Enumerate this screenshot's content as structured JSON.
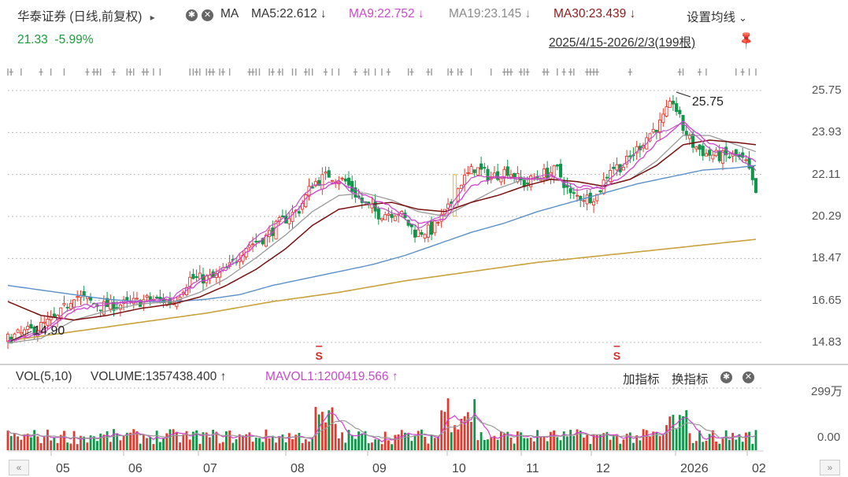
{
  "header": {
    "title": "华泰证券 (日线,前复权)",
    "arrow": "▸",
    "ma_label": "MA",
    "ma5": "MA5:22.612",
    "ma9": "MA9:22.752",
    "ma19": "MA19:23.145",
    "ma30": "MA30:23.439",
    "down_arrow": "↓",
    "settings": "设置均线",
    "settings_chevron": "⌄",
    "price": "21.33",
    "change": "-5.99%",
    "range": "2025/4/15-2026/2/3(199根)"
  },
  "volume_header": {
    "vol": "VOL(5,10)",
    "volume": "VOLUME:1357438.400",
    "volume_arrow": "↑",
    "mavol": "MAVOL1:1200419.566",
    "mavol_arrow": "↑",
    "add_indicator": "加指标",
    "switch_indicator": "换指标"
  },
  "colors": {
    "up": "#e23a2e",
    "down": "#10964a",
    "ma5": "#c24ec2",
    "ma9": "#d23fd2",
    "ma19": "#999999",
    "ma30": "#7a1010",
    "ma_long1": "#5a8fc8",
    "ma_long2": "#c8a23a",
    "header_green": "#1a9a3a",
    "ma30_text": "#8b1a1a"
  },
  "chart_data": {
    "type": "candlestick",
    "y_ticks": [
      "25.75",
      "23.93",
      "22.11",
      "20.29",
      "18.47",
      "16.65",
      "14.83"
    ],
    "ylim": [
      14.83,
      25.75
    ],
    "x_labels": [
      "05",
      "06",
      "07",
      "08",
      "09",
      "10",
      "11",
      "12",
      "2026",
      "02"
    ],
    "annotations": {
      "high": "25.75",
      "low": "14.90",
      "markers": [
        "S",
        "S"
      ]
    },
    "volume_ticks": [
      "299万",
      "0.00"
    ],
    "price_path": [
      [
        0,
        15.0
      ],
      [
        8,
        15.4
      ],
      [
        15,
        15.9
      ],
      [
        20,
        16.9
      ],
      [
        28,
        16.4
      ],
      [
        36,
        16.5
      ],
      [
        43,
        16.7
      ],
      [
        50,
        16.6
      ],
      [
        55,
        17.6
      ],
      [
        62,
        17.6
      ],
      [
        67,
        18.1
      ],
      [
        72,
        19.0
      ],
      [
        78,
        19.4
      ],
      [
        82,
        20.0
      ],
      [
        88,
        20.6
      ],
      [
        92,
        21.7
      ],
      [
        97,
        22.1
      ],
      [
        102,
        21.8
      ],
      [
        107,
        20.9
      ],
      [
        112,
        20.4
      ],
      [
        118,
        20.5
      ],
      [
        123,
        19.6
      ],
      [
        128,
        19.7
      ],
      [
        133,
        20.6
      ],
      [
        137,
        21.8
      ],
      [
        141,
        22.4
      ],
      [
        146,
        22.0
      ],
      [
        151,
        22.3
      ],
      [
        156,
        21.7
      ],
      [
        161,
        22.1
      ],
      [
        166,
        22.3
      ],
      [
        170,
        21.2
      ],
      [
        175,
        21.1
      ],
      [
        178,
        21.2
      ],
      [
        182,
        22.4
      ],
      [
        186,
        22.5
      ],
      [
        190,
        23.2
      ],
      [
        194,
        23.9
      ],
      [
        197,
        24.3
      ],
      [
        201,
        25.3
      ],
      [
        204,
        24.1
      ],
      [
        207,
        23.4
      ],
      [
        211,
        23.0
      ],
      [
        215,
        22.9
      ],
      [
        220,
        22.9
      ],
      [
        223,
        22.6
      ],
      [
        226,
        21.33
      ]
    ],
    "ma_anchors": {
      "ma5": [
        [
          0,
          14.9
        ],
        [
          10,
          15.3
        ],
        [
          20,
          16.4
        ],
        [
          30,
          16.5
        ],
        [
          40,
          16.6
        ],
        [
          50,
          16.8
        ],
        [
          58,
          17.6
        ],
        [
          66,
          18.1
        ],
        [
          75,
          19.4
        ],
        [
          84,
          20.3
        ],
        [
          92,
          21.6
        ],
        [
          100,
          21.8
        ],
        [
          108,
          20.9
        ],
        [
          116,
          20.5
        ],
        [
          124,
          19.8
        ],
        [
          132,
          20.4
        ],
        [
          140,
          22.0
        ],
        [
          148,
          22.0
        ],
        [
          156,
          21.9
        ],
        [
          164,
          22.1
        ],
        [
          172,
          21.4
        ],
        [
          180,
          21.6
        ],
        [
          188,
          22.8
        ],
        [
          196,
          23.9
        ],
        [
          204,
          24.3
        ],
        [
          212,
          23.2
        ],
        [
          220,
          22.9
        ],
        [
          226,
          22.3
        ]
      ],
      "ma9": [
        [
          0,
          14.9
        ],
        [
          10,
          15.2
        ],
        [
          20,
          16.2
        ],
        [
          30,
          16.5
        ],
        [
          40,
          16.6
        ],
        [
          50,
          16.7
        ],
        [
          58,
          17.4
        ],
        [
          66,
          18.0
        ],
        [
          75,
          19.1
        ],
        [
          84,
          20.1
        ],
        [
          92,
          21.3
        ],
        [
          100,
          21.8
        ],
        [
          108,
          21.2
        ],
        [
          116,
          20.7
        ],
        [
          124,
          20.0
        ],
        [
          132,
          20.2
        ],
        [
          140,
          21.6
        ],
        [
          148,
          22.0
        ],
        [
          156,
          21.9
        ],
        [
          164,
          22.0
        ],
        [
          172,
          21.6
        ],
        [
          180,
          21.5
        ],
        [
          188,
          22.3
        ],
        [
          196,
          23.5
        ],
        [
          204,
          24.4
        ],
        [
          212,
          23.5
        ],
        [
          220,
          23.0
        ],
        [
          226,
          22.7
        ]
      ],
      "ma19": [
        [
          0,
          14.8
        ],
        [
          10,
          15.0
        ],
        [
          20,
          15.8
        ],
        [
          30,
          16.2
        ],
        [
          40,
          16.5
        ],
        [
          50,
          16.6
        ],
        [
          58,
          17.0
        ],
        [
          66,
          17.6
        ],
        [
          75,
          18.5
        ],
        [
          84,
          19.5
        ],
        [
          92,
          20.5
        ],
        [
          100,
          21.2
        ],
        [
          108,
          21.3
        ],
        [
          116,
          21.0
        ],
        [
          124,
          20.5
        ],
        [
          132,
          20.3
        ],
        [
          140,
          20.9
        ],
        [
          148,
          21.5
        ],
        [
          156,
          21.9
        ],
        [
          164,
          21.9
        ],
        [
          172,
          21.8
        ],
        [
          180,
          21.6
        ],
        [
          188,
          21.9
        ],
        [
          196,
          22.7
        ],
        [
          204,
          23.8
        ],
        [
          212,
          23.8
        ],
        [
          220,
          23.4
        ],
        [
          226,
          23.1
        ]
      ],
      "ma30": [
        [
          0,
          16.6
        ],
        [
          10,
          16.0
        ],
        [
          20,
          15.8
        ],
        [
          30,
          16.0
        ],
        [
          40,
          16.3
        ],
        [
          50,
          16.5
        ],
        [
          58,
          16.8
        ],
        [
          66,
          17.3
        ],
        [
          75,
          18.0
        ],
        [
          84,
          18.9
        ],
        [
          92,
          19.9
        ],
        [
          100,
          20.6
        ],
        [
          108,
          20.8
        ],
        [
          116,
          20.9
        ],
        [
          124,
          20.6
        ],
        [
          132,
          20.5
        ],
        [
          140,
          20.9
        ],
        [
          148,
          21.2
        ],
        [
          156,
          21.6
        ],
        [
          164,
          21.9
        ],
        [
          172,
          21.8
        ],
        [
          180,
          21.6
        ],
        [
          188,
          21.9
        ],
        [
          196,
          22.5
        ],
        [
          204,
          23.4
        ],
        [
          212,
          23.6
        ],
        [
          220,
          23.5
        ],
        [
          226,
          23.4
        ]
      ],
      "ma_long1": [
        [
          0,
          17.3
        ],
        [
          10,
          17.1
        ],
        [
          20,
          16.9
        ],
        [
          30,
          16.7
        ],
        [
          40,
          16.6
        ],
        [
          50,
          16.6
        ],
        [
          60,
          16.7
        ],
        [
          70,
          16.9
        ],
        [
          80,
          17.3
        ],
        [
          90,
          17.6
        ],
        [
          100,
          17.9
        ],
        [
          110,
          18.2
        ],
        [
          120,
          18.6
        ],
        [
          130,
          19.1
        ],
        [
          140,
          19.6
        ],
        [
          150,
          20.0
        ],
        [
          160,
          20.5
        ],
        [
          170,
          20.9
        ],
        [
          180,
          21.3
        ],
        [
          190,
          21.7
        ],
        [
          200,
          22.0
        ],
        [
          210,
          22.3
        ],
        [
          220,
          22.4
        ],
        [
          226,
          22.5
        ]
      ],
      "ma_long2": [
        [
          0,
          14.9
        ],
        [
          20,
          15.3
        ],
        [
          40,
          15.7
        ],
        [
          60,
          16.1
        ],
        [
          80,
          16.6
        ],
        [
          100,
          17.0
        ],
        [
          120,
          17.5
        ],
        [
          140,
          17.9
        ],
        [
          160,
          18.3
        ],
        [
          180,
          18.6
        ],
        [
          200,
          18.9
        ],
        [
          226,
          19.3
        ]
      ]
    }
  }
}
